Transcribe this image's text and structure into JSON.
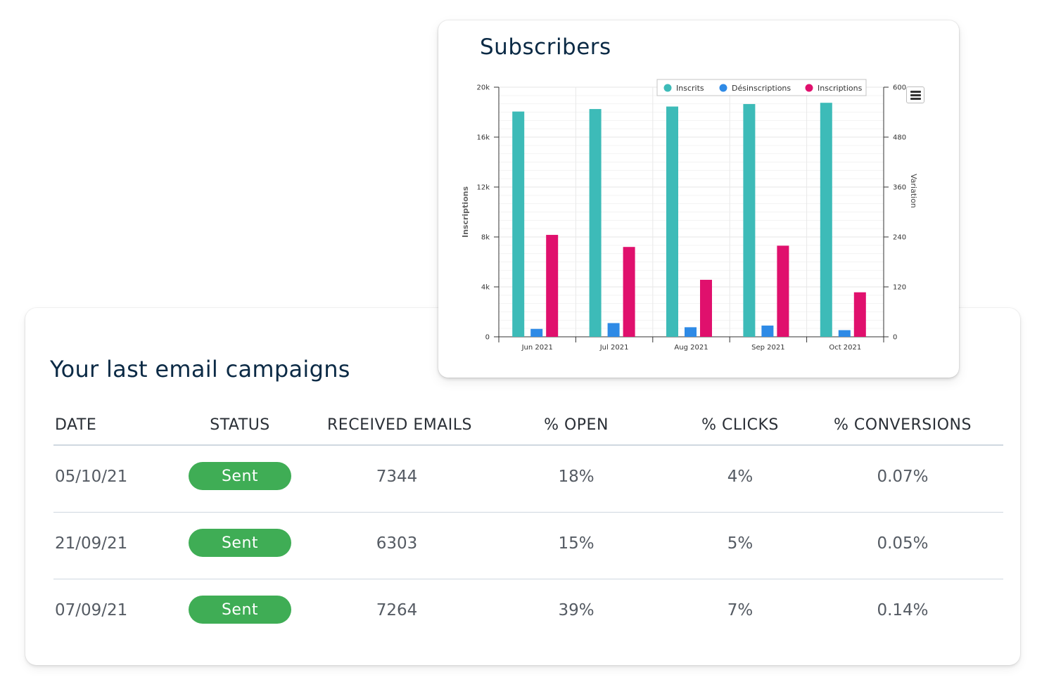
{
  "campaigns": {
    "title": "Your last email campaigns",
    "columns": [
      "DATE",
      "STATUS",
      "RECEIVED EMAILS",
      "% OPEN",
      "% CLICKS",
      "% CONVERSIONS"
    ],
    "rows": [
      {
        "date": "05/10/21",
        "status": "Sent",
        "received": "7344",
        "open": "18%",
        "clicks": "4%",
        "conversions": "0.07%"
      },
      {
        "date": "21/09/21",
        "status": "Sent",
        "received": "6303",
        "open": "15%",
        "clicks": "5%",
        "conversions": "0.05%"
      },
      {
        "date": "07/09/21",
        "status": "Sent",
        "received": "7264",
        "open": "39%",
        "clicks": "7%",
        "conversions": "0.14%"
      }
    ],
    "status_color": "#3fad55"
  },
  "chart": {
    "title": "Subscribers",
    "menu_icon": "hamburger-menu-icon"
  },
  "chart_data": {
    "type": "bar",
    "categories": [
      "Jun 2021",
      "Jul 2021",
      "Aug 2021",
      "Sep 2021",
      "Oct 2021"
    ],
    "series": [
      {
        "name": "Inscrits",
        "axis": "left",
        "color": "#3dbbb8",
        "values": [
          18050,
          18250,
          18450,
          18650,
          18750
        ]
      },
      {
        "name": "Désinscriptions",
        "axis": "right",
        "color": "#2e8ae6",
        "values": [
          19,
          33,
          23,
          27,
          16
        ]
      },
      {
        "name": "Inscriptions",
        "axis": "right",
        "color": "#e0106d",
        "values": [
          245,
          216,
          137,
          219,
          107
        ]
      }
    ],
    "ylabel": "Inscriptions",
    "y2label": "Variation",
    "ylim": [
      0,
      20000
    ],
    "y2lim": [
      0,
      600
    ],
    "yticks": [
      "0",
      "4k",
      "8k",
      "12k",
      "16k",
      "20k"
    ],
    "y2ticks": [
      "0",
      "120",
      "240",
      "360",
      "480",
      "600"
    ],
    "legend": "top-right",
    "grid": true
  }
}
